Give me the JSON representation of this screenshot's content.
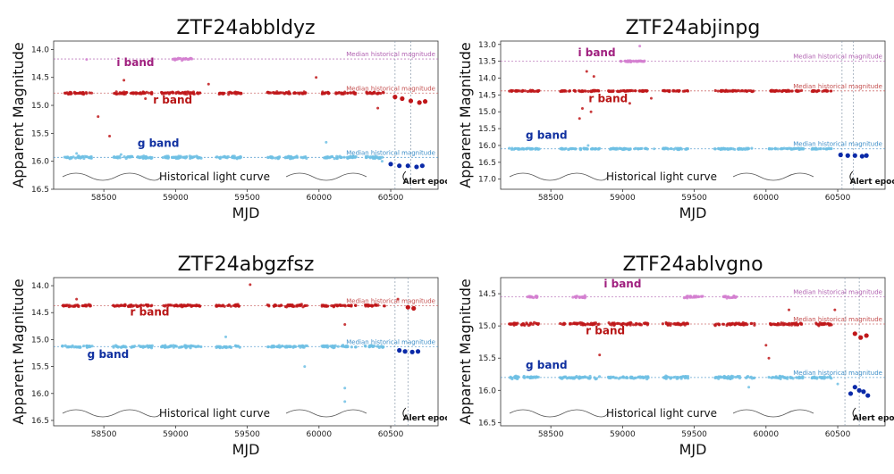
{
  "colors": {
    "r_hist": "#c0171a",
    "g_hist": "#6ec0e4",
    "i_hist": "#d37fd0",
    "r_alert": "#c0171a",
    "g_alert": "#0b2aa8",
    "i_alert": "#c050c0",
    "r_label": "#b81515",
    "g_label": "#1030a0",
    "i_label": "#a0207f",
    "r_median": "#c45050",
    "g_median": "#3d8ec8",
    "i_median": "#b060b0"
  },
  "chart_data": [
    {
      "type": "scatter",
      "title": "ZTF24abbldyz",
      "xlabel": "MJD",
      "ylabel": "Apparent Magnitude",
      "xlim": [
        58150,
        60830
      ],
      "ylim": [
        16.5,
        13.85
      ],
      "y_inverted": true,
      "xticks": [
        58500,
        59000,
        59500,
        60000,
        60500
      ],
      "xtick_labels": [
        "58500",
        "59000",
        "59500",
        "60000",
        "60500"
      ],
      "yticks": [
        14.0,
        14.5,
        15.0,
        15.5,
        16.0,
        16.5
      ],
      "ytick_labels": [
        "14.0",
        "14.5",
        "15.0",
        "15.5",
        "16.0",
        "16.5"
      ],
      "alert_epoch_lines": [
        60530,
        60640
      ],
      "annotations": {
        "historical": "Historical light curve",
        "alert": "Alert epoch"
      },
      "bands": [
        {
          "name": "r band",
          "key": "r",
          "median": 14.78,
          "median_label": "Median historical magnitude",
          "label_x": 58980,
          "label_y": 14.97,
          "seasons": [
            [
              58210,
              58420
            ],
            [
              58560,
              58840
            ],
            [
              58900,
              59180
            ],
            [
              59280,
              59460
            ],
            [
              59640,
              59920
            ],
            [
              60020,
              60260
            ],
            [
              60320,
              60460
            ]
          ],
          "outliers": [
            [
              58460,
              15.2
            ],
            [
              58540,
              15.55
            ],
            [
              58640,
              14.55
            ],
            [
              58790,
              14.88
            ],
            [
              59230,
              14.62
            ],
            [
              59980,
              14.5
            ],
            [
              60410,
              15.05
            ]
          ],
          "alert": [
            [
              60530,
              14.85
            ],
            [
              60580,
              14.88
            ],
            [
              60640,
              14.92
            ],
            [
              60700,
              14.95
            ],
            [
              60740,
              14.93
            ]
          ]
        },
        {
          "name": "g band",
          "key": "g",
          "median": 15.93,
          "median_label": "Median historical magnitude",
          "label_x": 58880,
          "label_y": 15.74,
          "seasons": [
            [
              58210,
              58420
            ],
            [
              58560,
              58840
            ],
            [
              58900,
              59180
            ],
            [
              59280,
              59460
            ],
            [
              59640,
              59920
            ],
            [
              60020,
              60260
            ],
            [
              60320,
              60460
            ]
          ],
          "outliers": [
            [
              58310,
              15.86
            ],
            [
              58620,
              15.88
            ],
            [
              60050,
              15.66
            ],
            [
              60440,
              16.0
            ]
          ],
          "alert": [
            [
              60500,
              16.05
            ],
            [
              60560,
              16.08
            ],
            [
              60620,
              16.08
            ],
            [
              60680,
              16.1
            ],
            [
              60720,
              16.08
            ]
          ]
        },
        {
          "name": "i band",
          "key": "i",
          "median": 14.17,
          "median_label": "Median historical magnitude",
          "label_x": 58720,
          "label_y": 14.3,
          "seasons": [
            [
              58980,
              59120
            ]
          ],
          "outliers": [
            [
              58380,
              14.18
            ]
          ],
          "alert": []
        }
      ]
    },
    {
      "type": "scatter",
      "title": "ZTF24abjinpg",
      "xlabel": "MJD",
      "ylabel": "Apparent Magnitude",
      "xlim": [
        58150,
        60830
      ],
      "ylim": [
        17.3,
        12.9
      ],
      "y_inverted": true,
      "xticks": [
        58500,
        59000,
        59500,
        60000,
        60500
      ],
      "xtick_labels": [
        "58500",
        "59000",
        "59500",
        "60000",
        "60500"
      ],
      "yticks": [
        13.0,
        13.5,
        14.0,
        14.5,
        15.0,
        15.5,
        16.0,
        16.5,
        17.0
      ],
      "ytick_labels": [
        "13.0",
        "13.5",
        "14.0",
        "14.5",
        "15.0",
        "15.5",
        "16.0",
        "16.5",
        "17.0"
      ],
      "alert_epoch_lines": [
        60530,
        60610
      ],
      "annotations": {
        "historical": "Historical light curve",
        "alert": "Alert epoch"
      },
      "bands": [
        {
          "name": "r band",
          "key": "r",
          "median": 14.38,
          "median_label": "Median historical magnitude",
          "label_x": 58900,
          "label_y": 14.72,
          "seasons": [
            [
              58210,
              58420
            ],
            [
              58560,
              58840
            ],
            [
              58900,
              59180
            ],
            [
              59280,
              59460
            ],
            [
              59640,
              59920
            ],
            [
              60020,
              60260
            ],
            [
              60320,
              60460
            ]
          ],
          "outliers": [
            [
              58700,
              15.2
            ],
            [
              58720,
              14.9
            ],
            [
              58750,
              13.8
            ],
            [
              58780,
              15.0
            ],
            [
              58800,
              13.95
            ],
            [
              59050,
              14.75
            ],
            [
              59200,
              14.6
            ]
          ],
          "alert": []
        },
        {
          "name": "g band",
          "key": "g",
          "median": 16.1,
          "median_label": "Median historical magnitude",
          "label_x": 58470,
          "label_y": 15.8,
          "seasons": [
            [
              58210,
              58420
            ],
            [
              58560,
              58840
            ],
            [
              58900,
              59180
            ],
            [
              59280,
              59460
            ],
            [
              59640,
              59920
            ],
            [
              60020,
              60260
            ],
            [
              60320,
              60460
            ]
          ],
          "outliers": [
            [
              58760,
              16.0
            ],
            [
              59220,
              16.1
            ]
          ],
          "alert": [
            [
              60520,
              16.28
            ],
            [
              60570,
              16.3
            ],
            [
              60620,
              16.3
            ],
            [
              60670,
              16.32
            ],
            [
              60700,
              16.3
            ]
          ]
        },
        {
          "name": "i band",
          "key": "i",
          "median": 13.5,
          "median_label": "Median historical magnitude",
          "label_x": 58820,
          "label_y": 13.35,
          "seasons": [
            [
              58980,
              59160
            ]
          ],
          "outliers": [
            [
              59120,
              13.05
            ]
          ],
          "alert": []
        }
      ]
    },
    {
      "type": "scatter",
      "title": "ZTF24abgzfsz",
      "xlabel": "MJD",
      "ylabel": "Apparent Magnitude",
      "xlim": [
        58150,
        60830
      ],
      "ylim": [
        16.6,
        13.85
      ],
      "y_inverted": true,
      "xticks": [
        58500,
        59000,
        59500,
        60000,
        60500
      ],
      "xtick_labels": [
        "58500",
        "59000",
        "59500",
        "60000",
        "60500"
      ],
      "yticks": [
        14.0,
        14.5,
        15.0,
        15.5,
        16.0,
        16.5
      ],
      "ytick_labels": [
        "14.0",
        "14.5",
        "15.0",
        "15.5",
        "16.0",
        "16.5"
      ],
      "alert_epoch_lines": [
        60530,
        60620
      ],
      "annotations": {
        "historical": "Historical light curve",
        "alert": "Alert epoch"
      },
      "bands": [
        {
          "name": "r band",
          "key": "r",
          "median": 14.37,
          "median_label": "Median historical magnitude",
          "label_x": 58820,
          "label_y": 14.55,
          "seasons": [
            [
              58210,
              58420
            ],
            [
              58560,
              58840
            ],
            [
              58900,
              59180
            ],
            [
              59280,
              59460
            ],
            [
              59640,
              59920
            ],
            [
              60020,
              60260
            ],
            [
              60320,
              60460
            ]
          ],
          "outliers": [
            [
              58310,
              14.25
            ],
            [
              59520,
              13.98
            ],
            [
              60180,
              14.72
            ],
            [
              60550,
              14.25
            ]
          ],
          "alert": [
            [
              60620,
              14.4
            ],
            [
              60660,
              14.42
            ]
          ]
        },
        {
          "name": "g band",
          "key": "g",
          "median": 15.13,
          "median_label": "Median historical magnitude",
          "label_x": 58530,
          "label_y": 15.34,
          "seasons": [
            [
              58210,
              58420
            ],
            [
              58560,
              58840
            ],
            [
              58900,
              59180
            ],
            [
              59280,
              59460
            ],
            [
              59640,
              59920
            ],
            [
              60020,
              60260
            ],
            [
              60320,
              60460
            ]
          ],
          "outliers": [
            [
              59350,
              14.95
            ],
            [
              59900,
              15.5
            ],
            [
              60180,
              15.9
            ],
            [
              60180,
              16.15
            ]
          ],
          "alert": [
            [
              60560,
              15.2
            ],
            [
              60600,
              15.22
            ],
            [
              60650,
              15.23
            ],
            [
              60690,
              15.22
            ]
          ]
        }
      ]
    },
    {
      "type": "scatter",
      "title": "ZTF24ablvgno",
      "xlabel": "MJD",
      "ylabel": "Apparent Magnitude",
      "xlim": [
        58150,
        60830
      ],
      "ylim": [
        16.55,
        14.25
      ],
      "y_inverted": true,
      "xticks": [
        58500,
        59000,
        59500,
        60000,
        60500
      ],
      "xtick_labels": [
        "58500",
        "59000",
        "59500",
        "60000",
        "60500"
      ],
      "yticks": [
        14.5,
        15.0,
        15.5,
        16.0,
        16.5
      ],
      "ytick_labels": [
        "14.5",
        "15.0",
        "15.5",
        "16.0",
        "16.5"
      ],
      "alert_epoch_lines": [
        60550,
        60650
      ],
      "annotations": {
        "historical": "Historical light curve",
        "alert": "Alert epoch"
      },
      "bands": [
        {
          "name": "r band",
          "key": "r",
          "median": 14.97,
          "median_label": "Median historical magnitude",
          "label_x": 58880,
          "label_y": 15.13,
          "seasons": [
            [
              58210,
              58420
            ],
            [
              58560,
              58840
            ],
            [
              58900,
              59180
            ],
            [
              59280,
              59460
            ],
            [
              59640,
              59920
            ],
            [
              60020,
              60260
            ],
            [
              60320,
              60460
            ]
          ],
          "outliers": [
            [
              58840,
              15.45
            ],
            [
              60000,
              15.3
            ],
            [
              60020,
              15.5
            ],
            [
              60160,
              14.75
            ],
            [
              60480,
              14.75
            ]
          ],
          "alert": [
            [
              60620,
              15.12
            ],
            [
              60660,
              15.18
            ],
            [
              60700,
              15.15
            ]
          ]
        },
        {
          "name": "g band",
          "key": "g",
          "median": 15.8,
          "median_label": "Median historical magnitude",
          "label_x": 58470,
          "label_y": 15.66,
          "seasons": [
            [
              58210,
              58420
            ],
            [
              58560,
              58840
            ],
            [
              58900,
              59180
            ],
            [
              59280,
              59460
            ],
            [
              59640,
              59920
            ],
            [
              60020,
              60260
            ],
            [
              60320,
              60460
            ]
          ],
          "outliers": [
            [
              59880,
              15.95
            ],
            [
              60500,
              15.9
            ]
          ],
          "alert": [
            [
              60590,
              16.05
            ],
            [
              60620,
              15.95
            ],
            [
              60650,
              16.0
            ],
            [
              60680,
              16.02
            ],
            [
              60710,
              16.08
            ]
          ]
        },
        {
          "name": "i band",
          "key": "i",
          "median": 14.55,
          "median_label": "Median historical magnitude",
          "label_x": 59000,
          "label_y": 14.4,
          "seasons": [
            [
              58330,
              58420
            ],
            [
              58640,
              58740
            ],
            [
              59420,
              59560
            ],
            [
              59700,
              59800
            ]
          ],
          "outliers": [],
          "alert": []
        }
      ]
    }
  ]
}
